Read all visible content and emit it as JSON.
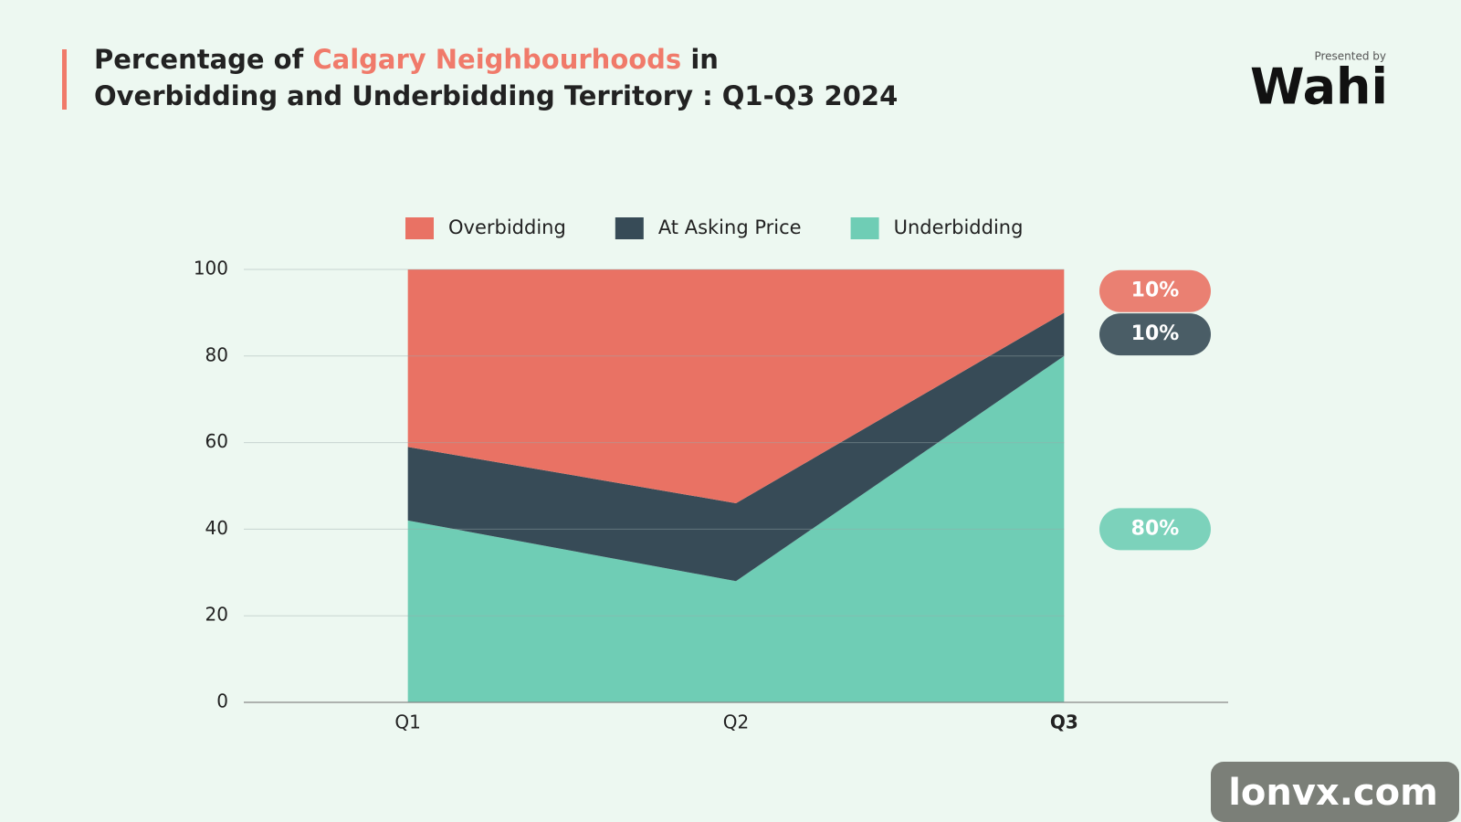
{
  "chart_data": {
    "type": "stacked_area",
    "title": [
      "Percentage of",
      "Calgary Neighbourhoods",
      "in",
      "Overbidding and Underbidding Territory : Q1-Q3 2024"
    ],
    "title_highlight_color": "#f07a6a",
    "presented_by": "Presented by",
    "logo": "Wahi",
    "watermark": "lonvx.com",
    "categories": [
      "Q1",
      "Q2",
      "Q3"
    ],
    "series": [
      {
        "name": "Overbidding",
        "color": "#e97264",
        "values": [
          41,
          54,
          10
        ],
        "value_labels": [
          null,
          null,
          "10%"
        ]
      },
      {
        "name": "At Asking Price",
        "color": "#374b57",
        "values": [
          17,
          18,
          10
        ],
        "value_labels": [
          null,
          null,
          "10%"
        ]
      },
      {
        "name": "Underbidding",
        "color": "#6fcdb5",
        "values": [
          42,
          28,
          80
        ],
        "value_labels": [
          null,
          null,
          "80%"
        ]
      }
    ],
    "ylim": [
      0,
      100
    ],
    "yticks": [
      0,
      20,
      40,
      60,
      80,
      100
    ],
    "grid": true
  }
}
